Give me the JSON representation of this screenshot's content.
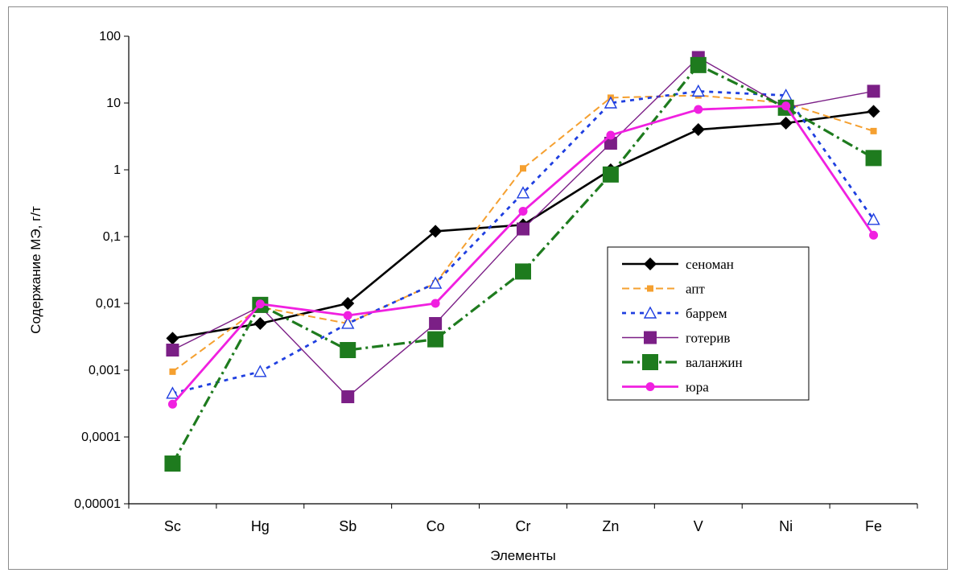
{
  "chart_data": {
    "type": "line",
    "title": "",
    "xlabel": "Элементы",
    "ylabel": "Содержание МЭ, г/т",
    "y_scale": "log",
    "ylim": [
      1e-05,
      100
    ],
    "y_ticks": [
      "0,00001",
      "0,0001",
      "0,001",
      "0,01",
      "0,1",
      "1",
      "10",
      "100"
    ],
    "y_tick_values": [
      1e-05,
      0.0001,
      0.001,
      0.01,
      0.1,
      1,
      10,
      100
    ],
    "categories": [
      "Sc",
      "Hg",
      "Sb",
      "Co",
      "Cr",
      "Zn",
      "V",
      "Ni",
      "Fe"
    ],
    "grid": false,
    "legend_position": "right",
    "series": [
      {
        "name": "сеноман",
        "color": "#000000",
        "marker": "diamond",
        "dash": "solid",
        "values": [
          0.003,
          0.005,
          0.01,
          0.12,
          0.15,
          1.0,
          4.0,
          5.0,
          7.5
        ]
      },
      {
        "name": "апт",
        "color": "#f5a030",
        "marker": "small-square",
        "dash": "dashed",
        "values": [
          0.00095,
          0.0088,
          0.005,
          0.02,
          1.05,
          12.0,
          13.0,
          10.0,
          3.8
        ]
      },
      {
        "name": "баррем",
        "color": "#1f3fe0",
        "marker": "open-triangle",
        "dash": "dotted",
        "values": [
          0.00045,
          0.00095,
          0.005,
          0.02,
          0.45,
          10.0,
          15.0,
          13.0,
          0.18
        ]
      },
      {
        "name": "готерив",
        "color": "#7b1f86",
        "marker": "square",
        "dash": "thin",
        "values": [
          0.002,
          0.009,
          0.0004,
          0.005,
          0.13,
          2.5,
          48.0,
          8.5,
          15.0
        ]
      },
      {
        "name": "валанжин",
        "color": "#1e7b1e",
        "marker": "big-square",
        "dash": "dashdot",
        "values": [
          4e-05,
          0.0095,
          0.002,
          0.0029,
          0.03,
          0.85,
          37.0,
          8.5,
          1.5
        ]
      },
      {
        "name": "юра",
        "color": "#f020e0",
        "marker": "circle",
        "dash": "thick",
        "values": [
          0.00031,
          0.0098,
          0.0066,
          0.01,
          0.24,
          3.3,
          8.0,
          9.0,
          0.105
        ]
      }
    ]
  }
}
